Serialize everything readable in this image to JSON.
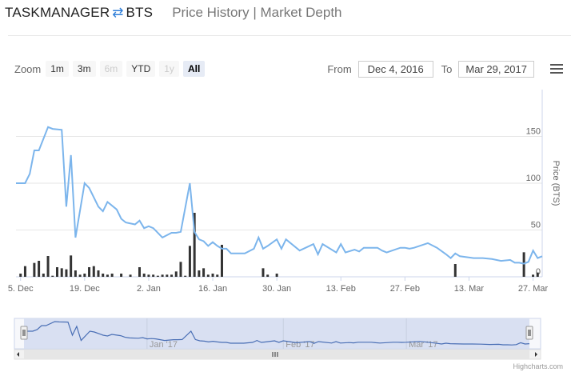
{
  "header": {
    "base": "TASKMANAGER",
    "swap_icon": "⇄",
    "quote": "BTS",
    "views": [
      "Price History",
      "|",
      "Market Depth"
    ]
  },
  "zoom": {
    "label": "Zoom",
    "buttons": [
      {
        "label": "1m",
        "state": "normal"
      },
      {
        "label": "3m",
        "state": "normal"
      },
      {
        "label": "6m",
        "state": "disabled"
      },
      {
        "label": "YTD",
        "state": "normal"
      },
      {
        "label": "1y",
        "state": "disabled"
      },
      {
        "label": "All",
        "state": "active"
      }
    ]
  },
  "range": {
    "from_label": "From",
    "from": "Dec 4, 2016",
    "to_label": "To",
    "to": "Mar 29, 2017"
  },
  "menu_icon": "hamburger-menu-icon",
  "credits": "Highcharts.com",
  "colors": {
    "line": "#7cb5ec",
    "bars": "#333333",
    "navigator_fill": "#d4dcf0",
    "navigator_line": "#4a6fb5"
  },
  "chart_data": {
    "type": "line",
    "title": "",
    "ylabel": "Price (BTS)",
    "ylim": [
      0,
      200
    ],
    "yticks": [
      0,
      50,
      100,
      150
    ],
    "xlim": [
      "2016-12-04",
      "2017-03-29"
    ],
    "xticks": [
      {
        "date": "2016-12-05",
        "label": "5. Dec"
      },
      {
        "date": "2016-12-19",
        "label": "19. Dec"
      },
      {
        "date": "2017-01-02",
        "label": "2. Jan"
      },
      {
        "date": "2017-01-16",
        "label": "16. Jan"
      },
      {
        "date": "2017-01-30",
        "label": "30. Jan"
      },
      {
        "date": "2017-02-13",
        "label": "13. Feb"
      },
      {
        "date": "2017-02-27",
        "label": "27. Feb"
      },
      {
        "date": "2017-03-13",
        "label": "13. Mar"
      },
      {
        "date": "2017-03-27",
        "label": "27. Mar"
      }
    ],
    "navigator_ticks": [
      {
        "date": "2017-01-01",
        "label": "Jan '17"
      },
      {
        "date": "2017-02-01",
        "label": "Feb '17"
      },
      {
        "date": "2017-03-01",
        "label": "Mar '17"
      }
    ],
    "series": [
      {
        "name": "Price",
        "x": [
          "2016-12-04",
          "2016-12-06",
          "2016-12-07",
          "2016-12-08",
          "2016-12-09",
          "2016-12-11",
          "2016-12-12",
          "2016-12-14",
          "2016-12-15",
          "2016-12-16",
          "2016-12-17",
          "2016-12-19",
          "2016-12-20",
          "2016-12-22",
          "2016-12-23",
          "2016-12-24",
          "2016-12-26",
          "2016-12-27",
          "2016-12-28",
          "2016-12-30",
          "2016-12-31",
          "2017-01-01",
          "2017-01-02",
          "2017-01-03",
          "2017-01-05",
          "2017-01-07",
          "2017-01-08",
          "2017-01-09",
          "2017-01-11",
          "2017-01-12",
          "2017-01-13",
          "2017-01-14",
          "2017-01-15",
          "2017-01-16",
          "2017-01-17",
          "2017-01-18",
          "2017-01-19",
          "2017-01-20",
          "2017-01-23",
          "2017-01-25",
          "2017-01-26",
          "2017-01-27",
          "2017-01-28",
          "2017-01-30",
          "2017-01-31",
          "2017-02-01",
          "2017-02-04",
          "2017-02-07",
          "2017-02-08",
          "2017-02-09",
          "2017-02-12",
          "2017-02-13",
          "2017-02-14",
          "2017-02-16",
          "2017-02-17",
          "2017-02-18",
          "2017-02-21",
          "2017-02-22",
          "2017-02-23",
          "2017-02-26",
          "2017-02-27",
          "2017-02-28",
          "2017-03-01",
          "2017-03-04",
          "2017-03-06",
          "2017-03-08",
          "2017-03-09",
          "2017-03-10",
          "2017-03-11",
          "2017-03-14",
          "2017-03-16",
          "2017-03-18",
          "2017-03-20",
          "2017-03-22",
          "2017-03-23",
          "2017-03-24",
          "2017-03-25",
          "2017-03-26",
          "2017-03-27",
          "2017-03-28",
          "2017-03-29"
        ],
        "values": [
          100,
          100,
          110,
          135,
          135,
          160,
          158,
          157,
          75,
          130,
          42,
          100,
          95,
          75,
          70,
          80,
          72,
          62,
          58,
          56,
          60,
          52,
          54,
          52,
          42,
          47,
          47,
          48,
          100,
          48,
          40,
          38,
          33,
          37,
          33,
          30,
          30,
          25,
          25,
          30,
          42,
          30,
          33,
          40,
          30,
          40,
          28,
          35,
          24,
          35,
          26,
          35,
          26,
          29,
          27,
          31,
          31,
          28,
          26,
          31,
          31,
          30,
          31,
          36,
          31,
          24,
          20,
          25,
          22,
          20,
          20,
          19,
          17,
          18,
          15,
          15,
          14,
          16,
          28,
          20,
          22
        ]
      },
      {
        "name": "Volume",
        "x": [
          "2016-12-05",
          "2016-12-06",
          "2016-12-08",
          "2016-12-09",
          "2016-12-10",
          "2016-12-11",
          "2016-12-12",
          "2016-12-13",
          "2016-12-14",
          "2016-12-15",
          "2016-12-16",
          "2016-12-17",
          "2016-12-18",
          "2016-12-19",
          "2016-12-20",
          "2016-12-21",
          "2016-12-22",
          "2016-12-23",
          "2016-12-24",
          "2016-12-25",
          "2016-12-27",
          "2016-12-29",
          "2016-12-31",
          "2017-01-01",
          "2017-01-02",
          "2017-01-03",
          "2017-01-04",
          "2017-01-05",
          "2017-01-06",
          "2017-01-07",
          "2017-01-08",
          "2017-01-09",
          "2017-01-10",
          "2017-01-11",
          "2017-01-12",
          "2017-01-13",
          "2017-01-14",
          "2017-01-15",
          "2017-01-16",
          "2017-01-17",
          "2017-01-18",
          "2017-01-27",
          "2017-01-28",
          "2017-01-30",
          "2017-03-10",
          "2017-03-25",
          "2017-03-27",
          "2017-03-28"
        ],
        "values": [
          6,
          20,
          26,
          30,
          6,
          39,
          2,
          18,
          16,
          14,
          40,
          12,
          4,
          6,
          18,
          20,
          12,
          6,
          4,
          6,
          6,
          4,
          18,
          6,
          4,
          4,
          2,
          4,
          4,
          4,
          10,
          28,
          2,
          58,
          120,
          12,
          16,
          4,
          6,
          4,
          60,
          16,
          4,
          6,
          24,
          46,
          4,
          8
        ]
      }
    ]
  }
}
